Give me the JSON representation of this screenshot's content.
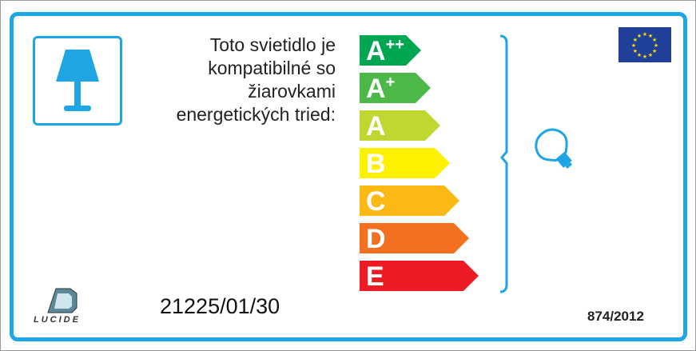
{
  "description": "Toto svietidlo je kompatibilné so žiarovkami energetických tried:",
  "description_lines": [
    "Toto svietidlo je",
    "kompatibilné so",
    "žiarovkami",
    "energetických tried:"
  ],
  "classes": [
    {
      "letter": "A",
      "sup": "++",
      "color": "#00a650"
    },
    {
      "letter": "A",
      "sup": "+",
      "color": "#4cb848"
    },
    {
      "letter": "A",
      "sup": "",
      "color": "#bfd730"
    },
    {
      "letter": "B",
      "sup": "",
      "color": "#fff200"
    },
    {
      "letter": "C",
      "sup": "",
      "color": "#fdb913"
    },
    {
      "letter": "D",
      "sup": "",
      "color": "#f37021"
    },
    {
      "letter": "E",
      "sup": "",
      "color": "#ed1c24"
    }
  ],
  "model_number": "21225/01/30",
  "regulation": "874/2012",
  "brand": "LUCIDE",
  "accent_color": "#1ea5e3",
  "icons": [
    "table-lamp-icon",
    "light-bulb-icon",
    "eu-flag-icon",
    "lucide-logo"
  ]
}
